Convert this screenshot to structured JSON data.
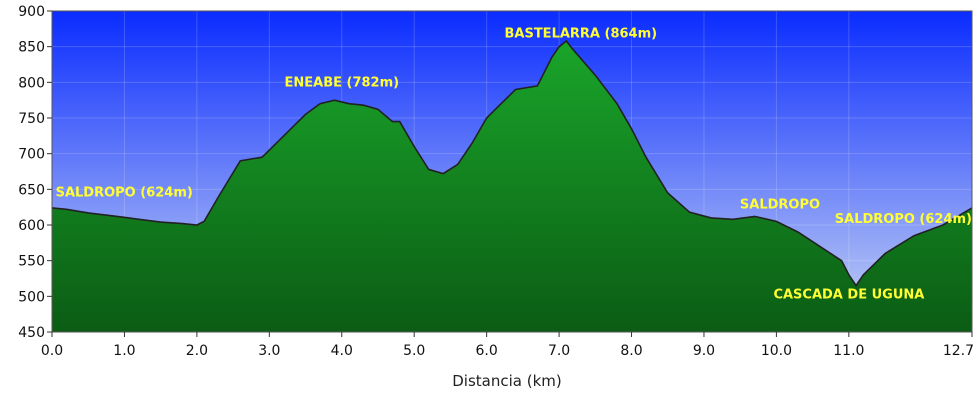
{
  "chart_data": {
    "type": "area",
    "title": "",
    "xlabel": "Distancia  (km)",
    "ylabel": "",
    "xlim": [
      0,
      12.7
    ],
    "ylim": [
      450,
      900
    ],
    "x_ticks": [
      0,
      1,
      2,
      3,
      4,
      5,
      6,
      7,
      8,
      9,
      10,
      11,
      12.7
    ],
    "x_tick_labels": [
      "0.0",
      "1.0",
      "2.0",
      "3.0",
      "4.0",
      "5.0",
      "6.0",
      "7.0",
      "8.0",
      "9.0",
      "10.0",
      "11.0",
      "12.7"
    ],
    "y_ticks": [
      450,
      500,
      550,
      600,
      650,
      700,
      750,
      800,
      850,
      900
    ],
    "y_tick_labels": [
      "450",
      "500",
      "550",
      "600",
      "650",
      "700",
      "750",
      "800",
      "850",
      "900"
    ],
    "grid": true,
    "colors": {
      "sky_top": "#0a2cff",
      "sky_bottom": "#c9d6f3",
      "fill_top": "#1aa52a",
      "fill_bottom": "#0b5c14",
      "outline": "#222222",
      "annotation": "#ffff33"
    },
    "series": [
      {
        "x": [
          0,
          0.2,
          0.5,
          0.9,
          1.2,
          1.5,
          1.8,
          2.0,
          2.1,
          2.3,
          2.6,
          2.9,
          3.2,
          3.5,
          3.7,
          3.9,
          4.1,
          4.3,
          4.5,
          4.7,
          4.8,
          5.0,
          5.2,
          5.4,
          5.6,
          5.8,
          6.0,
          6.2,
          6.4,
          6.7,
          6.9,
          7.0,
          7.1,
          7.2,
          7.5,
          7.8,
          8.0,
          8.2,
          8.5,
          8.8,
          9.1,
          9.4,
          9.7,
          10.0,
          10.3,
          10.6,
          10.9,
          11.0,
          11.1,
          11.2,
          11.5,
          11.9,
          12.3,
          12.7
        ],
        "y": [
          624,
          622,
          617,
          612,
          608,
          604,
          602,
          600,
          605,
          640,
          690,
          695,
          725,
          755,
          770,
          775,
          770,
          768,
          762,
          745,
          745,
          710,
          678,
          672,
          685,
          715,
          750,
          770,
          790,
          795,
          835,
          850,
          858,
          845,
          810,
          770,
          735,
          695,
          645,
          618,
          610,
          608,
          612,
          605,
          590,
          570,
          550,
          530,
          515,
          530,
          560,
          585,
          600,
          624
        ]
      }
    ],
    "annotations": [
      {
        "text": "SALDROPO (624m)",
        "x": 0.05,
        "y": 640,
        "anchor": "start"
      },
      {
        "text": "ENEABE (782m)",
        "x": 4.0,
        "y": 794,
        "anchor": "middle"
      },
      {
        "text": "BASTELARRA (864m)",
        "x": 7.3,
        "y": 863,
        "anchor": "middle"
      },
      {
        "text": "SALDROPO",
        "x": 10.05,
        "y": 623,
        "anchor": "middle"
      },
      {
        "text": "SALDROPO (624m)",
        "x": 12.7,
        "y": 603,
        "anchor": "end"
      },
      {
        "text": "CASCADA DE UGUNA",
        "x": 11.0,
        "y": 497,
        "anchor": "middle"
      }
    ]
  }
}
